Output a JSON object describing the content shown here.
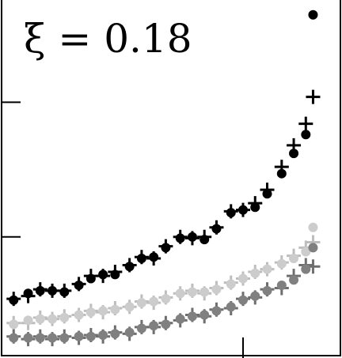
{
  "chart_data": {
    "type": "scatter",
    "annotation": "ξ = 0.18",
    "x": [
      0.05,
      0.11,
      0.16,
      0.21,
      0.26,
      0.32,
      0.37,
      0.42,
      0.47,
      0.53,
      0.58,
      0.63,
      0.68,
      0.74,
      0.79,
      0.84,
      0.89,
      0.95,
      1.0,
      1.05,
      1.1,
      1.16,
      1.21,
      1.26,
      1.29
    ],
    "xlim": [
      0,
      1.4
    ],
    "xticks": [
      1
    ],
    "ylim": [
      0.1,
      2.76
    ],
    "yticks": [
      1,
      2
    ],
    "series": [
      {
        "color": "#bdbdbd",
        "marker": "plus",
        "values": [
          0.36,
          0.36,
          0.4,
          0.39,
          0.41,
          0.42,
          0.45,
          0.44,
          0.47,
          0.48,
          0.52,
          0.51,
          0.55,
          0.58,
          0.6,
          0.58,
          0.62,
          0.66,
          0.69,
          0.74,
          0.76,
          0.81,
          0.86,
          0.92,
          0.96
        ]
      },
      {
        "color": "#cccccc",
        "marker": "dot",
        "values": [
          0.35,
          0.38,
          0.39,
          0.39,
          0.4,
          0.42,
          0.44,
          0.45,
          0.46,
          0.48,
          0.51,
          0.52,
          0.54,
          0.58,
          0.59,
          0.59,
          0.61,
          0.65,
          0.69,
          0.73,
          0.76,
          0.8,
          0.84,
          0.89,
          1.07
        ]
      },
      {
        "color": "#6e6e6e",
        "marker": "plus",
        "values": [
          0.26,
          0.24,
          0.26,
          0.24,
          0.26,
          0.25,
          0.27,
          0.26,
          0.29,
          0.28,
          0.33,
          0.33,
          0.36,
          0.38,
          0.42,
          0.41,
          0.46,
          0.47,
          0.54,
          0.55,
          0.61,
          0.62,
          0.71,
          0.79,
          0.78
        ]
      },
      {
        "color": "#808080",
        "marker": "dot",
        "values": [
          0.25,
          0.25,
          0.25,
          0.25,
          0.25,
          0.26,
          0.26,
          0.27,
          0.28,
          0.29,
          0.32,
          0.34,
          0.35,
          0.39,
          0.41,
          0.42,
          0.45,
          0.48,
          0.53,
          0.56,
          0.6,
          0.64,
          0.68,
          0.76,
          0.92
        ]
      },
      {
        "color": "#000000",
        "marker": "plus",
        "values": [
          0.54,
          0.56,
          0.61,
          0.6,
          0.6,
          0.65,
          0.71,
          0.71,
          0.74,
          0.79,
          0.85,
          0.84,
          0.93,
          1.0,
          0.99,
          1.0,
          1.07,
          1.19,
          1.2,
          1.25,
          1.35,
          1.52,
          1.68,
          1.84,
          2.04
        ]
      },
      {
        "color": "#000000",
        "marker": "dot",
        "values": [
          0.53,
          0.58,
          0.6,
          0.6,
          0.59,
          0.64,
          0.69,
          0.72,
          0.72,
          0.78,
          0.84,
          0.85,
          0.92,
          0.99,
          1.0,
          0.98,
          1.06,
          1.18,
          1.2,
          1.22,
          1.32,
          1.47,
          1.62,
          1.76,
          2.65
        ]
      }
    ]
  }
}
